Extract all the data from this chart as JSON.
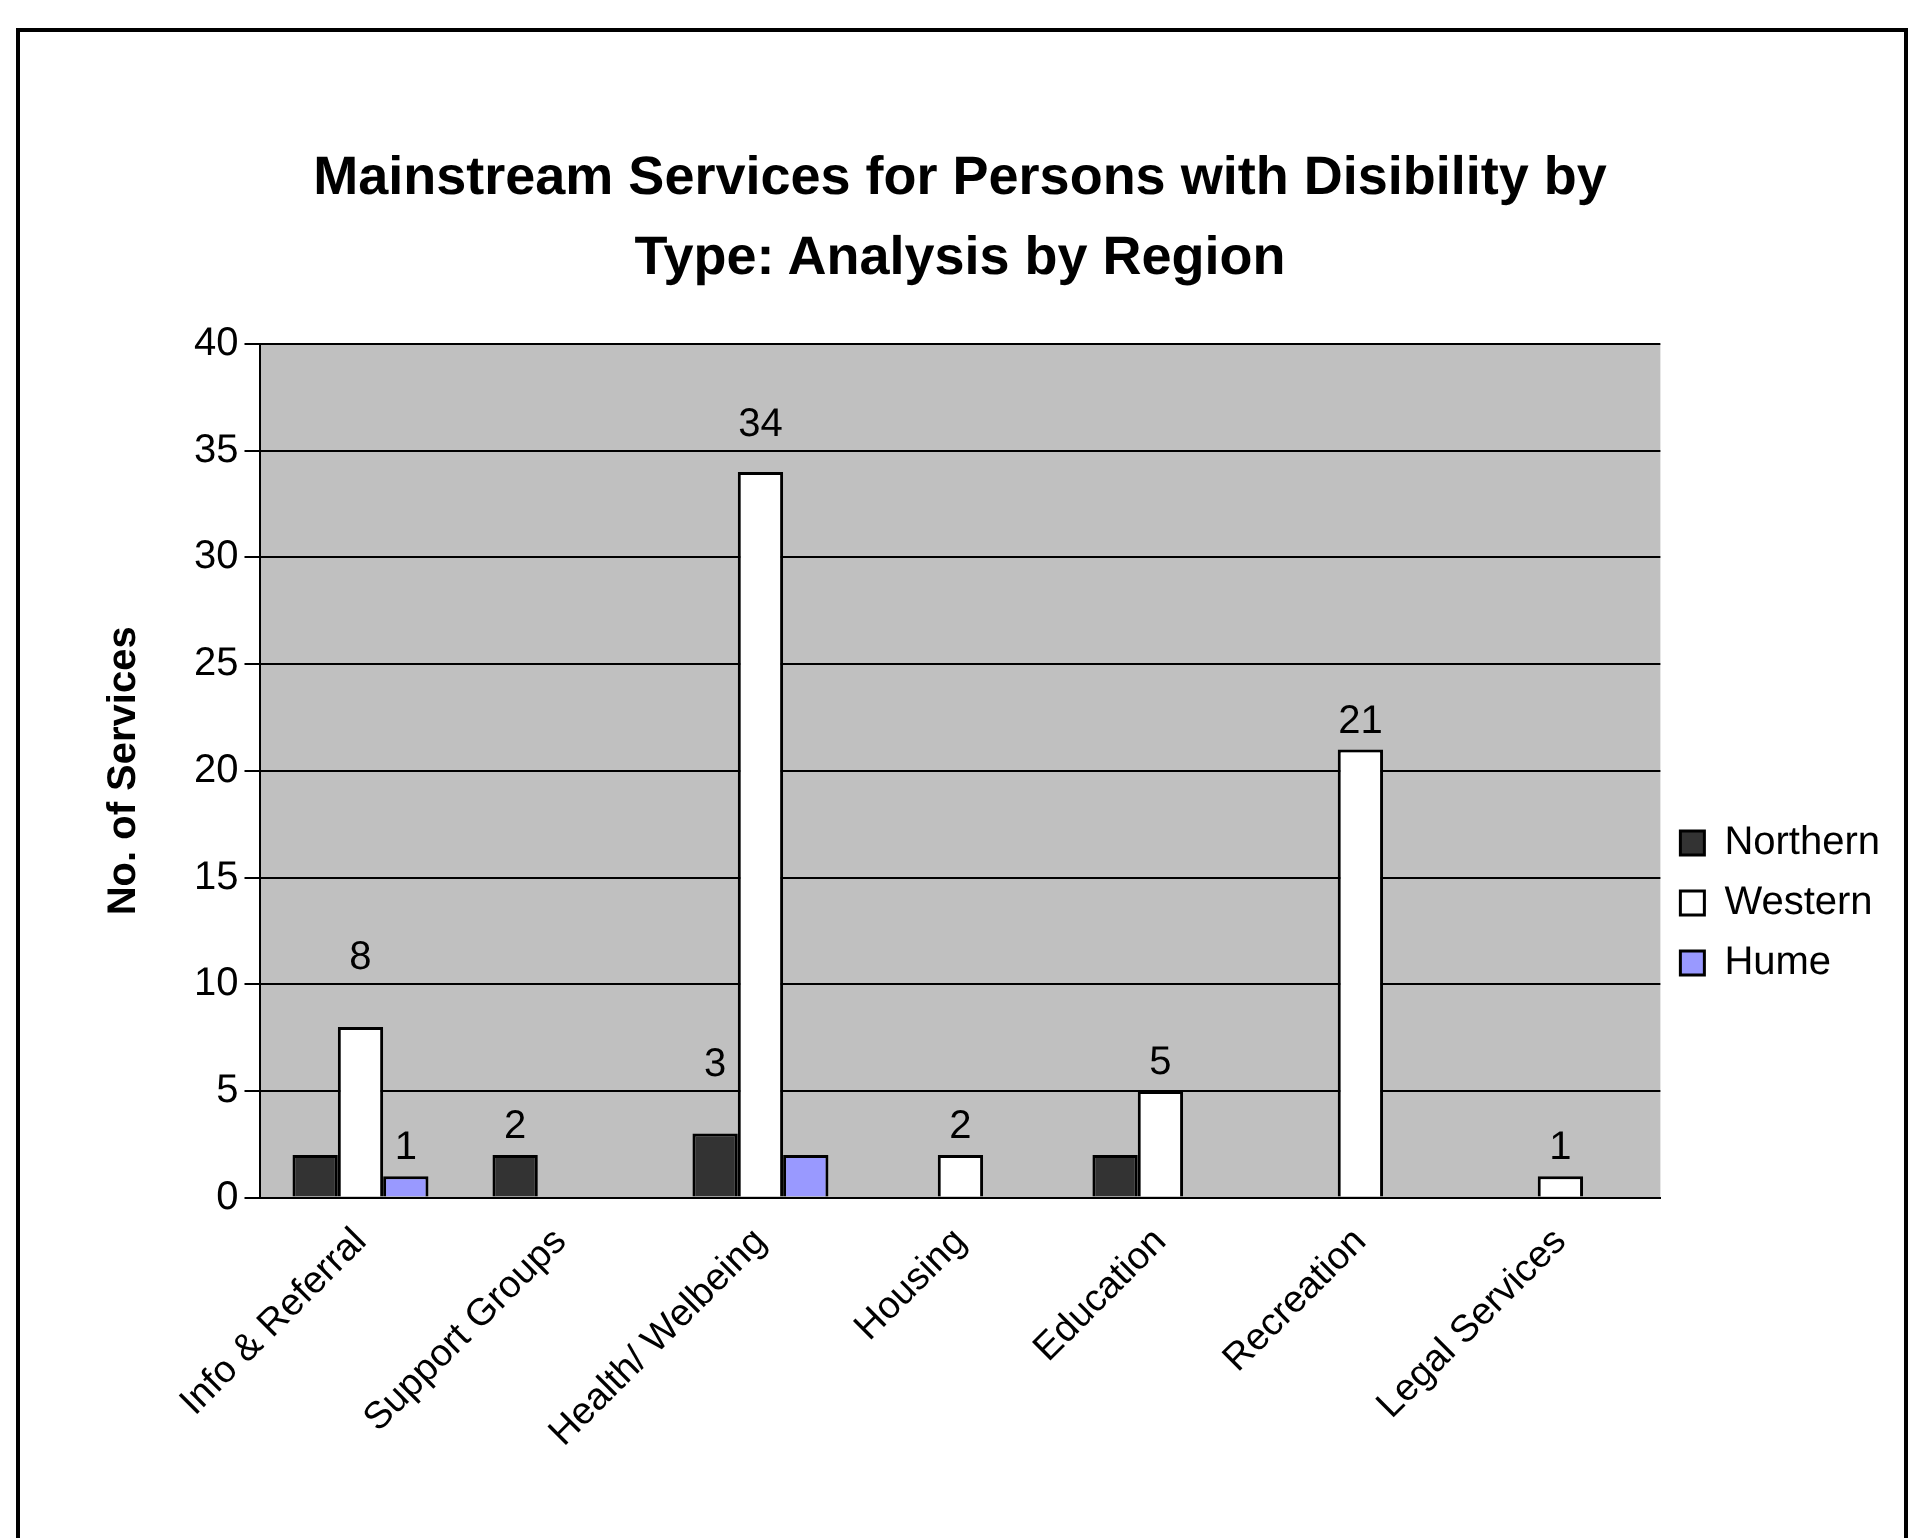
{
  "chart_data": {
    "type": "bar",
    "title": "Mainstream Services for Persons with Disibility by Type: Analysis by Region",
    "ylabel": "No. of Services",
    "categories": [
      "Info & Referral",
      "Support Groups",
      "Health/ Welbeing",
      "Housing",
      "Education",
      "Recreation",
      "Legal Services"
    ],
    "series": [
      {
        "name": "Northern",
        "color": "#333333",
        "values": [
          2,
          2,
          3,
          0,
          2,
          0,
          0
        ],
        "value_labels": [
          null,
          "2",
          "3",
          null,
          null,
          null,
          null
        ]
      },
      {
        "name": "Western",
        "color": "#ffffff",
        "values": [
          8,
          0,
          34,
          2,
          5,
          21,
          1
        ],
        "value_labels": [
          "8",
          null,
          "34",
          "2",
          "5",
          "21",
          "1"
        ]
      },
      {
        "name": "Hume",
        "color": "#9999ff",
        "values": [
          1,
          0,
          2,
          0,
          0,
          0,
          0
        ],
        "value_labels": [
          "1",
          null,
          null,
          null,
          null,
          null,
          null
        ]
      }
    ],
    "ylim": [
      0,
      40
    ],
    "yticks": [
      0,
      5,
      10,
      15,
      20,
      25,
      30,
      35,
      40
    ],
    "grid": "y",
    "legend": "right"
  }
}
